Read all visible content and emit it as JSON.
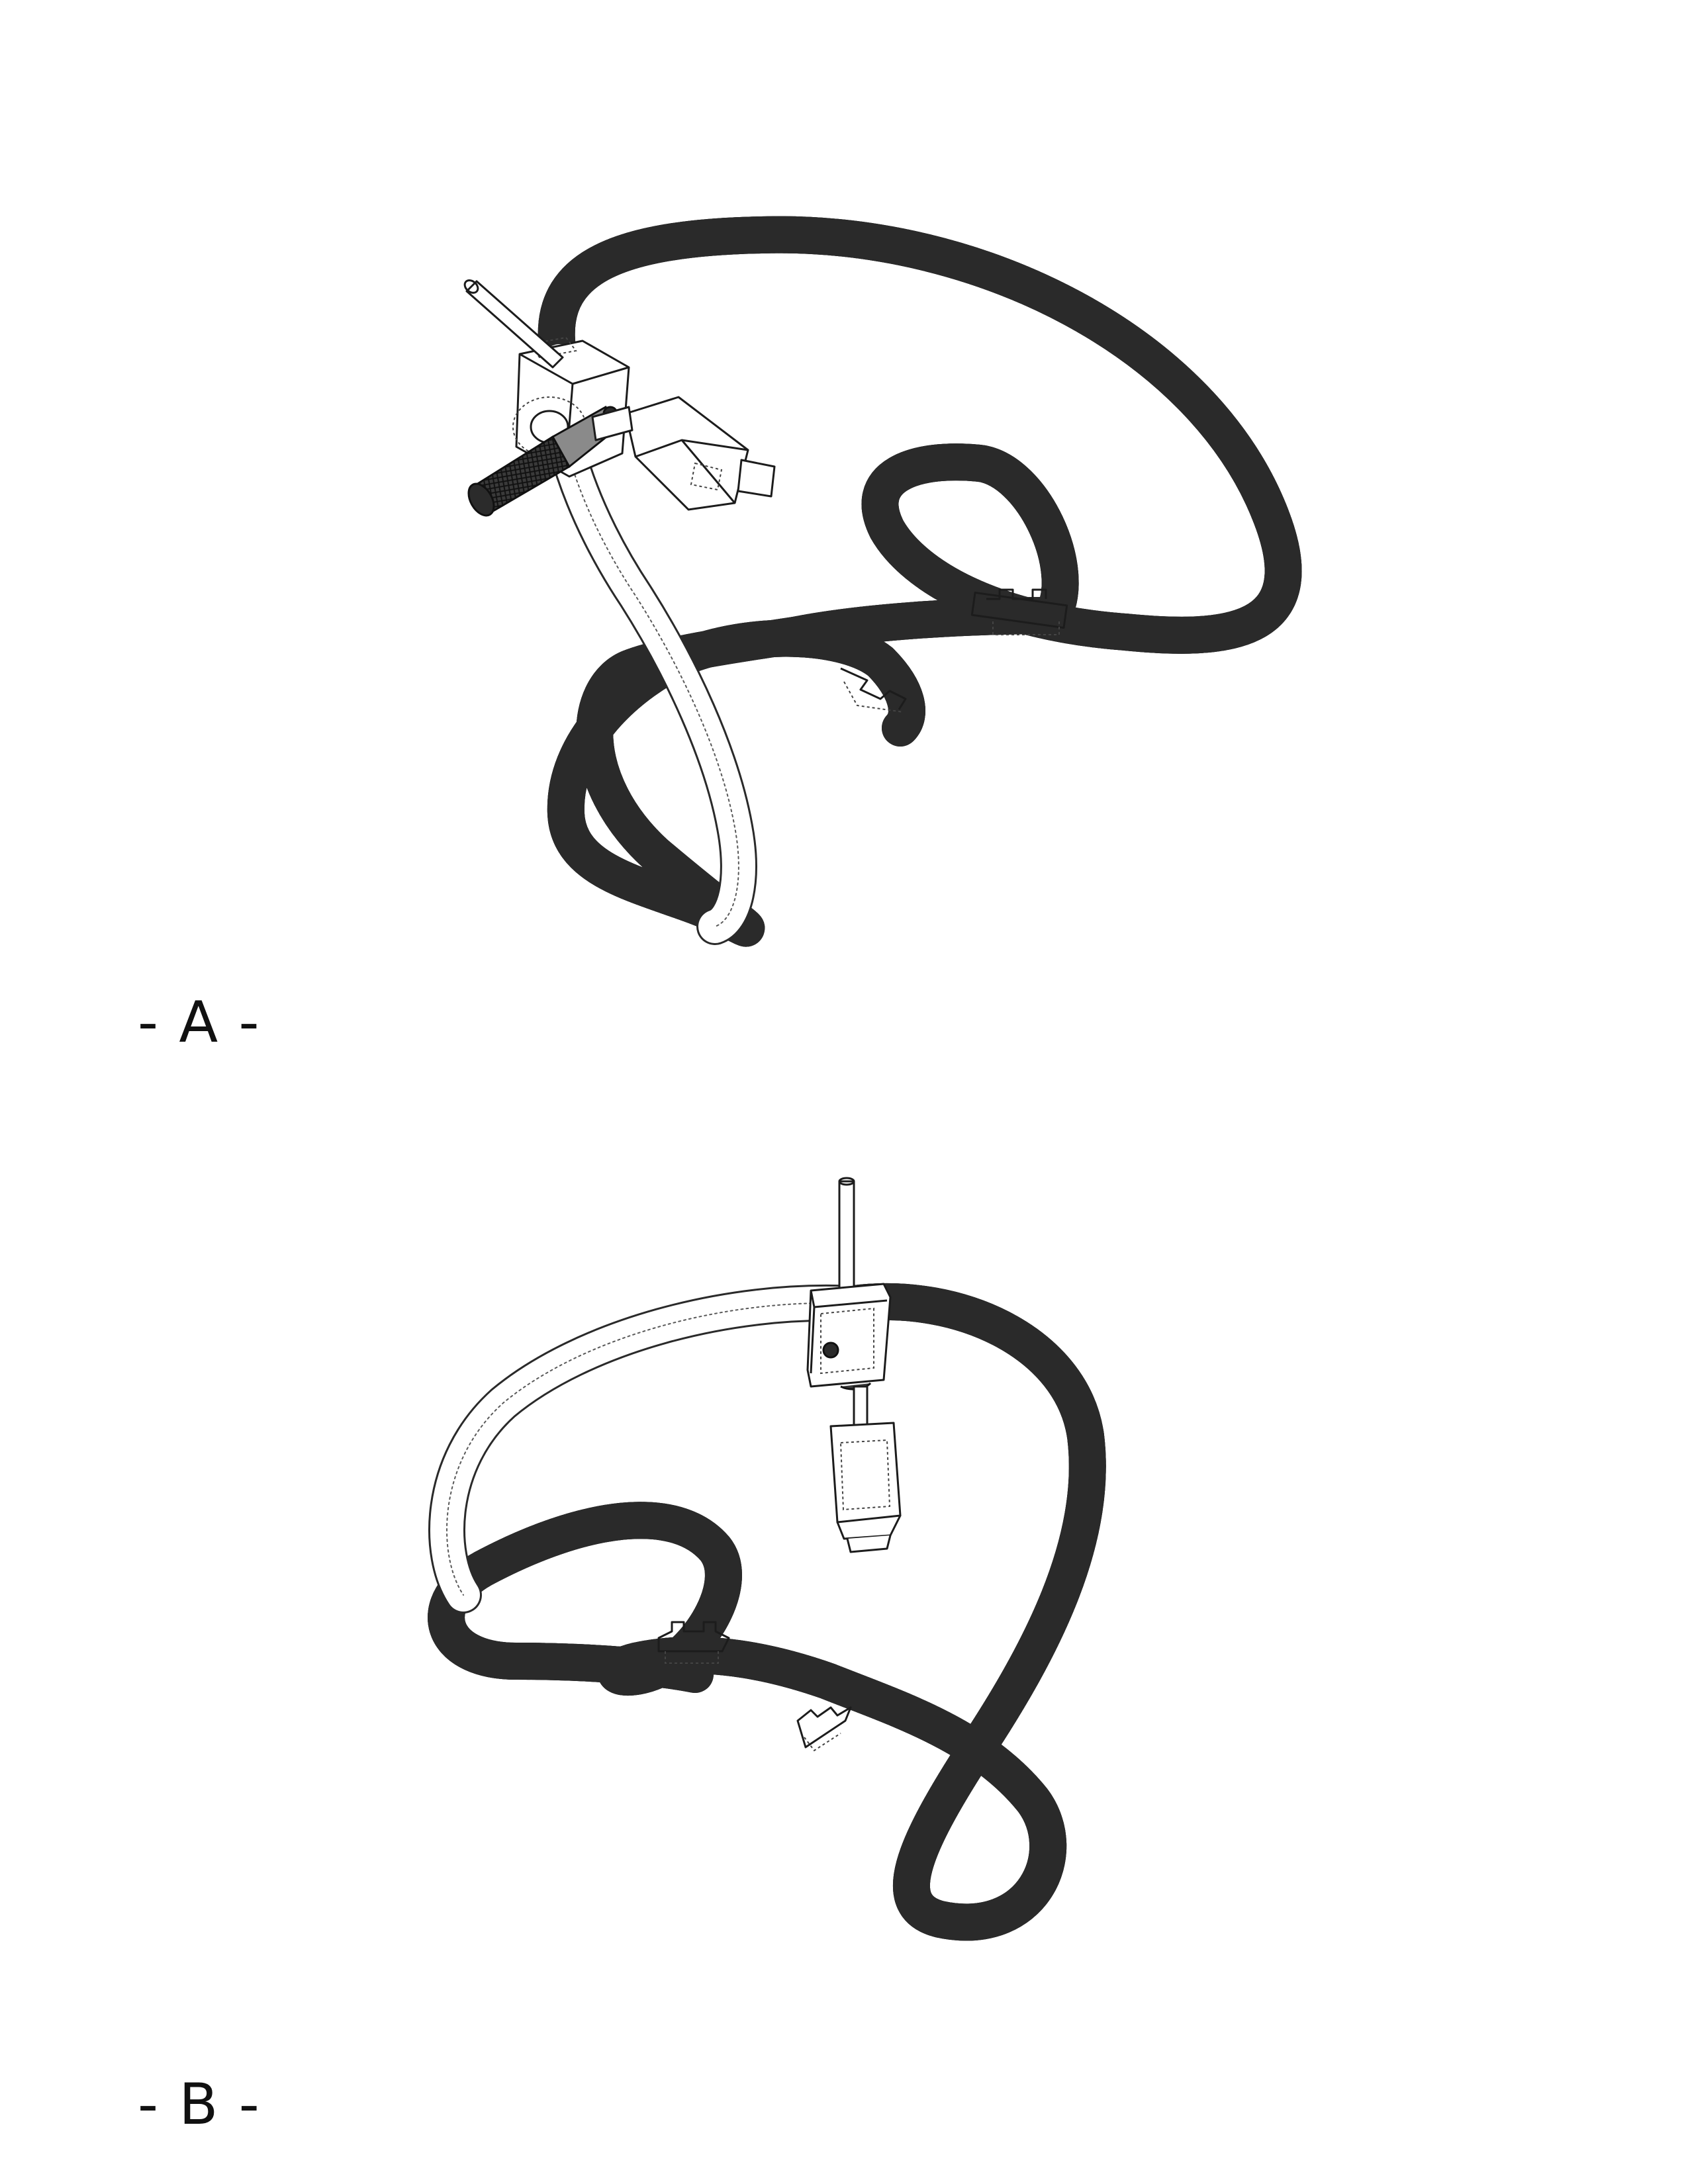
{
  "figures": [
    {
      "id": "A",
      "label": "- A -"
    },
    {
      "id": "B",
      "label": "- B -"
    }
  ]
}
